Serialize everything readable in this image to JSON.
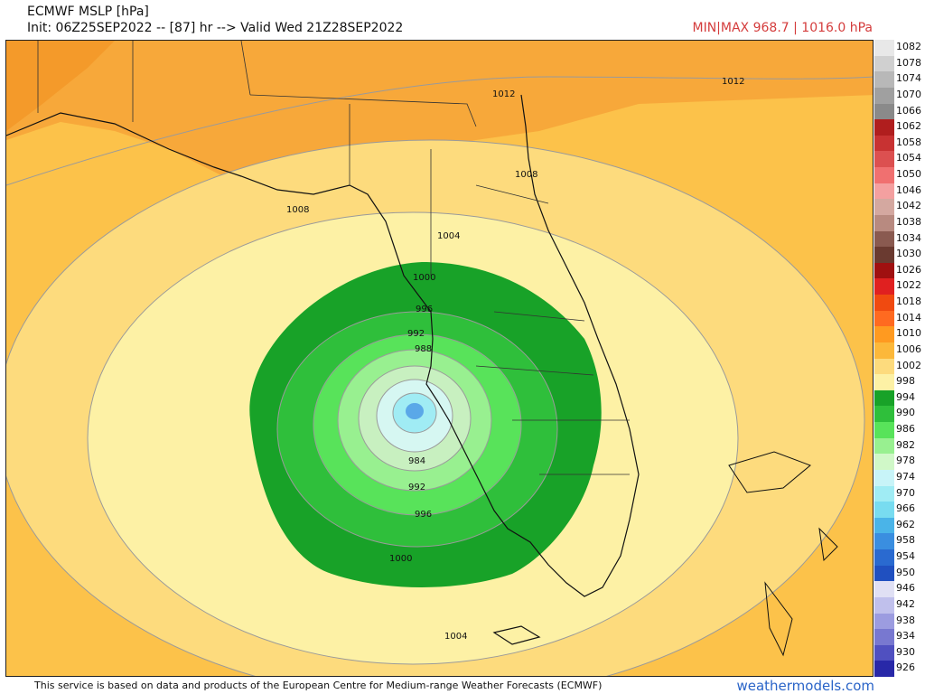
{
  "header": {
    "title": "ECMWF MSLP [hPa]",
    "init": "Init: 06Z25SEP2022 -- [87] hr --> Valid Wed 21Z28SEP2022",
    "minmax": "MIN|MAX 968.7 | 1016.0 hPa"
  },
  "map": {
    "contour_labels": [
      "1012",
      "1012",
      "1008",
      "1008",
      "1004",
      "1000",
      "996",
      "992",
      "988",
      "984",
      "992",
      "996",
      "1000",
      "1004"
    ],
    "colors": {
      "water_outer": "#fcc24a",
      "land_north": "#f7a83a",
      "band_1008": "#fddb7d",
      "band_1004": "#fdf1a5",
      "green_dark": "#18a228",
      "green_mid": "#2fbf3b",
      "green_light": "#58e35a",
      "green_pale": "#a6f0a0",
      "cyan_pale": "#d6f7f2",
      "blue_center": "#5aa8e8"
    }
  },
  "colorbar": {
    "labels": [
      "1082",
      "1078",
      "1074",
      "1070",
      "1066",
      "1062",
      "1058",
      "1054",
      "1050",
      "1046",
      "1042",
      "1038",
      "1034",
      "1030",
      "1026",
      "1022",
      "1018",
      "1014",
      "1010",
      "1006",
      "1002",
      "998",
      "994",
      "990",
      "986",
      "982",
      "978",
      "974",
      "970",
      "966",
      "962",
      "958",
      "954",
      "950",
      "946",
      "942",
      "938",
      "934",
      "930",
      "926"
    ],
    "colors": [
      "#e8e8e8",
      "#d0d0d0",
      "#b8b8b8",
      "#a0a0a0",
      "#8a8a8a",
      "#b01e1e",
      "#c83232",
      "#dc5050",
      "#f07070",
      "#f4a0a0",
      "#d4a8a0",
      "#b88a80",
      "#8a5a50",
      "#6a3a30",
      "#a01010",
      "#e02020",
      "#f04a10",
      "#ff6a20",
      "#ff9a20",
      "#fcb83a",
      "#fddb7d",
      "#fdf1a5",
      "#18a228",
      "#2fbf3b",
      "#58e35a",
      "#98f090",
      "#d0f8c8",
      "#c8f4f8",
      "#a0ecf4",
      "#78dcf0",
      "#4ab4e8",
      "#3a8ee0",
      "#2a6ad0",
      "#2050c0",
      "#e0e0f4",
      "#c0c0ec",
      "#9c9ce0",
      "#7878d0",
      "#5050c0",
      "#2828a8"
    ]
  },
  "footer": {
    "disclaimer": "This service is based on data and products of the European Centre for Medium-range Weather Forecasts (ECMWF)",
    "brand": "weathermodels.com"
  }
}
